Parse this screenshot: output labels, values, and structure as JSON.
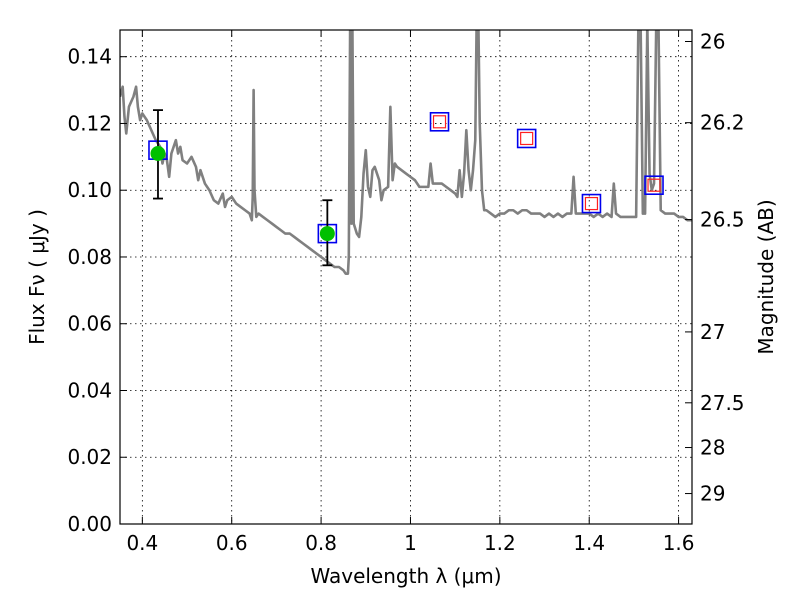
{
  "chart_data": {
    "type": "scatter",
    "title": "",
    "xlabel": "Wavelength  λ (μm)",
    "ylabel": "Flux  Fν  ( μJy )",
    "ylabel_right": "Magnitude (AB)",
    "xlim": [
      0.35,
      1.63
    ],
    "ylim": [
      0.0,
      0.148
    ],
    "grid": true,
    "x_ticks": [
      0.4,
      0.6,
      0.8,
      1.0,
      1.2,
      1.4,
      1.6
    ],
    "x_tick_labels": [
      "0.4",
      "0.6",
      "0.8",
      "1",
      "1.2",
      "1.4",
      "1.6"
    ],
    "y_ticks": [
      0.0,
      0.02,
      0.04,
      0.06,
      0.08,
      0.1,
      0.12,
      0.14
    ],
    "y_tick_labels": [
      "0.00",
      "0.02",
      "0.04",
      "0.06",
      "0.08",
      "0.10",
      "0.12",
      "0.14"
    ],
    "right_ticks": [
      {
        "label": "26",
        "mag": 26.0
      },
      {
        "label": "26.2",
        "mag": 26.2
      },
      {
        "label": "26.5",
        "mag": 26.5
      },
      {
        "label": "27",
        "mag": 27.0
      },
      {
        "label": "27.5",
        "mag": 27.5
      },
      {
        "label": "28",
        "mag": 28.0
      },
      {
        "label": "29",
        "mag": 29.0
      }
    ],
    "colors": {
      "sed": "#808080",
      "observed": "#00c000",
      "model_box": "#0000ee",
      "upper_box": "#ff2020",
      "errorbar": "#000000"
    },
    "series": [
      {
        "kind": "line",
        "points": [
          [
            0.35,
            0.128
          ],
          [
            0.356,
            0.131
          ],
          [
            0.36,
            0.122
          ],
          [
            0.364,
            0.117
          ],
          [
            0.37,
            0.125
          ],
          [
            0.38,
            0.128
          ],
          [
            0.386,
            0.131
          ],
          [
            0.39,
            0.125
          ],
          [
            0.395,
            0.121
          ],
          [
            0.4,
            0.123
          ],
          [
            0.41,
            0.121
          ],
          [
            0.42,
            0.118
          ],
          [
            0.43,
            0.115
          ],
          [
            0.44,
            0.113
          ],
          [
            0.445,
            0.108
          ],
          [
            0.45,
            0.111
          ],
          [
            0.455,
            0.109
          ],
          [
            0.46,
            0.104
          ],
          [
            0.465,
            0.111
          ],
          [
            0.47,
            0.113
          ],
          [
            0.475,
            0.115
          ],
          [
            0.48,
            0.111
          ],
          [
            0.485,
            0.113
          ],
          [
            0.49,
            0.109
          ],
          [
            0.5,
            0.108
          ],
          [
            0.51,
            0.11
          ],
          [
            0.52,
            0.107
          ],
          [
            0.525,
            0.103
          ],
          [
            0.53,
            0.106
          ],
          [
            0.54,
            0.102
          ],
          [
            0.55,
            0.1
          ],
          [
            0.56,
            0.097
          ],
          [
            0.57,
            0.096
          ],
          [
            0.58,
            0.099
          ],
          [
            0.585,
            0.095
          ],
          [
            0.59,
            0.097
          ],
          [
            0.6,
            0.098
          ],
          [
            0.61,
            0.096
          ],
          [
            0.62,
            0.095
          ],
          [
            0.63,
            0.094
          ],
          [
            0.64,
            0.093
          ],
          [
            0.645,
            0.091
          ],
          [
            0.647,
            0.098
          ],
          [
            0.649,
            0.13
          ],
          [
            0.651,
            0.1
          ],
          [
            0.655,
            0.092
          ],
          [
            0.66,
            0.093
          ],
          [
            0.67,
            0.092
          ],
          [
            0.68,
            0.091
          ],
          [
            0.69,
            0.09
          ],
          [
            0.7,
            0.089
          ],
          [
            0.71,
            0.088
          ],
          [
            0.72,
            0.087
          ],
          [
            0.73,
            0.087
          ],
          [
            0.74,
            0.086
          ],
          [
            0.75,
            0.085
          ],
          [
            0.76,
            0.084
          ],
          [
            0.77,
            0.083
          ],
          [
            0.78,
            0.082
          ],
          [
            0.79,
            0.081
          ],
          [
            0.8,
            0.08
          ],
          [
            0.81,
            0.079
          ],
          [
            0.82,
            0.078
          ],
          [
            0.83,
            0.077
          ],
          [
            0.84,
            0.077
          ],
          [
            0.85,
            0.076
          ],
          [
            0.855,
            0.075
          ],
          [
            0.86,
            0.075
          ],
          [
            0.862,
            0.08
          ],
          [
            0.865,
            0.15
          ],
          [
            0.868,
            0.09
          ],
          [
            0.87,
            0.15
          ],
          [
            0.873,
            0.09
          ],
          [
            0.88,
            0.087
          ],
          [
            0.885,
            0.086
          ],
          [
            0.89,
            0.092
          ],
          [
            0.895,
            0.105
          ],
          [
            0.9,
            0.112
          ],
          [
            0.905,
            0.101
          ],
          [
            0.91,
            0.098
          ],
          [
            0.915,
            0.106
          ],
          [
            0.92,
            0.107
          ],
          [
            0.93,
            0.103
          ],
          [
            0.935,
            0.097
          ],
          [
            0.94,
            0.1
          ],
          [
            0.95,
            0.101
          ],
          [
            0.955,
            0.125
          ],
          [
            0.96,
            0.103
          ],
          [
            0.965,
            0.108
          ],
          [
            0.97,
            0.107
          ],
          [
            0.98,
            0.106
          ],
          [
            0.99,
            0.105
          ],
          [
            1.0,
            0.104
          ],
          [
            1.01,
            0.103
          ],
          [
            1.02,
            0.101
          ],
          [
            1.03,
            0.101
          ],
          [
            1.04,
            0.101
          ],
          [
            1.045,
            0.108
          ],
          [
            1.05,
            0.102
          ],
          [
            1.06,
            0.102
          ],
          [
            1.07,
            0.102
          ],
          [
            1.08,
            0.101
          ],
          [
            1.09,
            0.1
          ],
          [
            1.1,
            0.099
          ],
          [
            1.105,
            0.098
          ],
          [
            1.11,
            0.106
          ],
          [
            1.115,
            0.098
          ],
          [
            1.12,
            0.105
          ],
          [
            1.125,
            0.118
          ],
          [
            1.13,
            0.106
          ],
          [
            1.135,
            0.1
          ],
          [
            1.14,
            0.106
          ],
          [
            1.145,
            0.115
          ],
          [
            1.148,
            0.15
          ],
          [
            1.152,
            0.15
          ],
          [
            1.155,
            0.12
          ],
          [
            1.16,
            0.1
          ],
          [
            1.165,
            0.094
          ],
          [
            1.17,
            0.094
          ],
          [
            1.18,
            0.093
          ],
          [
            1.19,
            0.092
          ],
          [
            1.2,
            0.093
          ],
          [
            1.21,
            0.093
          ],
          [
            1.22,
            0.094
          ],
          [
            1.23,
            0.094
          ],
          [
            1.24,
            0.093
          ],
          [
            1.25,
            0.094
          ],
          [
            1.26,
            0.094
          ],
          [
            1.27,
            0.093
          ],
          [
            1.28,
            0.093
          ],
          [
            1.29,
            0.093
          ],
          [
            1.3,
            0.092
          ],
          [
            1.31,
            0.093
          ],
          [
            1.32,
            0.092
          ],
          [
            1.33,
            0.093
          ],
          [
            1.34,
            0.092
          ],
          [
            1.35,
            0.093
          ],
          [
            1.36,
            0.093
          ],
          [
            1.365,
            0.104
          ],
          [
            1.37,
            0.093
          ],
          [
            1.38,
            0.093
          ],
          [
            1.39,
            0.093
          ],
          [
            1.4,
            0.093
          ],
          [
            1.41,
            0.092
          ],
          [
            1.42,
            0.093
          ],
          [
            1.43,
            0.092
          ],
          [
            1.44,
            0.093
          ],
          [
            1.45,
            0.092
          ],
          [
            1.455,
            0.102
          ],
          [
            1.46,
            0.093
          ],
          [
            1.47,
            0.092
          ],
          [
            1.48,
            0.092
          ],
          [
            1.49,
            0.092
          ],
          [
            1.5,
            0.092
          ],
          [
            1.505,
            0.092
          ],
          [
            1.51,
            0.15
          ],
          [
            1.515,
            0.15
          ],
          [
            1.52,
            0.093
          ],
          [
            1.525,
            0.093
          ],
          [
            1.53,
            0.15
          ],
          [
            1.535,
            0.105
          ],
          [
            1.54,
            0.1
          ],
          [
            1.545,
            0.102
          ],
          [
            1.55,
            0.15
          ],
          [
            1.555,
            0.15
          ],
          [
            1.56,
            0.094
          ],
          [
            1.57,
            0.093
          ],
          [
            1.58,
            0.093
          ],
          [
            1.59,
            0.093
          ],
          [
            1.6,
            0.092
          ],
          [
            1.61,
            0.092
          ],
          [
            1.62,
            0.091
          ],
          [
            1.63,
            0.091
          ]
        ]
      },
      {
        "kind": "observed",
        "points": [
          {
            "x": 0.435,
            "y": 0.111,
            "yerr_low": 0.0975,
            "yerr_high": 0.124
          },
          {
            "x": 0.814,
            "y": 0.087,
            "yerr_low": 0.0775,
            "yerr_high": 0.097
          }
        ]
      },
      {
        "kind": "model_boxes",
        "points": [
          {
            "x": 0.435,
            "y": 0.112
          },
          {
            "x": 0.814,
            "y": 0.087
          },
          {
            "x": 1.065,
            "y": 0.1205
          },
          {
            "x": 1.26,
            "y": 0.1155
          },
          {
            "x": 1.405,
            "y": 0.096
          },
          {
            "x": 1.545,
            "y": 0.1015
          }
        ]
      },
      {
        "kind": "upper_boxes",
        "points": [
          {
            "x": 1.065,
            "y": 0.1205
          },
          {
            "x": 1.26,
            "y": 0.1155
          },
          {
            "x": 1.405,
            "y": 0.096
          },
          {
            "x": 1.545,
            "y": 0.1015
          }
        ]
      }
    ]
  }
}
